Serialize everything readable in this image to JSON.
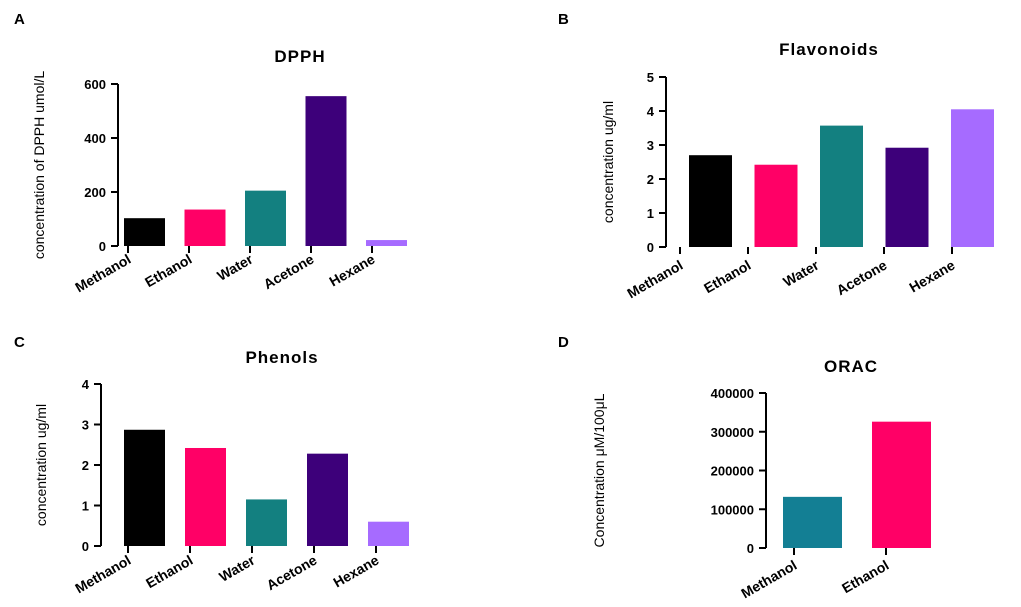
{
  "chart_data": [
    {
      "panel": "A",
      "type": "bar",
      "title": "DPPH",
      "xlabel": "",
      "ylabel": "concentration of DPPH umol/L",
      "categories": [
        "Methanol",
        "Ethanol",
        "Water",
        "Acetone",
        "Hexane"
      ],
      "values": [
        103,
        135,
        205,
        555,
        22
      ],
      "colors": [
        "#000000",
        "#ff0066",
        "#138080",
        "#3d007a",
        "#a66bff"
      ],
      "yticks": [
        0,
        200,
        400,
        600
      ],
      "ylim": [
        0,
        600
      ]
    },
    {
      "panel": "B",
      "type": "bar",
      "title": "Flavonoids",
      "xlabel": "",
      "ylabel": "concentration ug/ml",
      "categories": [
        "Methanol",
        "Ethanol",
        "Water",
        "Acetone",
        "Hexane"
      ],
      "values": [
        2.7,
        2.42,
        3.57,
        2.92,
        4.05
      ],
      "colors": [
        "#000000",
        "#ff0066",
        "#138080",
        "#3d007a",
        "#a66bff"
      ],
      "yticks": [
        0,
        1,
        2,
        3,
        4,
        5
      ],
      "ylim": [
        0,
        5
      ]
    },
    {
      "panel": "C",
      "type": "bar",
      "title": "Phenols",
      "xlabel": "",
      "ylabel": "concentration ug/ml",
      "categories": [
        "Methanol",
        "Ethanol",
        "Water",
        "Acetone",
        "Hexane"
      ],
      "values": [
        2.87,
        2.42,
        1.15,
        2.28,
        0.6
      ],
      "colors": [
        "#000000",
        "#ff0066",
        "#138080",
        "#3d007a",
        "#a66bff"
      ],
      "yticks": [
        0,
        1,
        2,
        3,
        4
      ],
      "ylim": [
        0,
        4
      ]
    },
    {
      "panel": "D",
      "type": "bar",
      "title": "ORAC",
      "xlabel": "",
      "ylabel": "Concentration μM/100μL",
      "categories": [
        "Methanol",
        "Ethanol"
      ],
      "values": [
        132000,
        326000
      ],
      "colors": [
        "#137f94",
        "#ff0066"
      ],
      "yticks": [
        0,
        100000,
        200000,
        300000,
        400000
      ],
      "ylim": [
        0,
        400000
      ]
    }
  ]
}
